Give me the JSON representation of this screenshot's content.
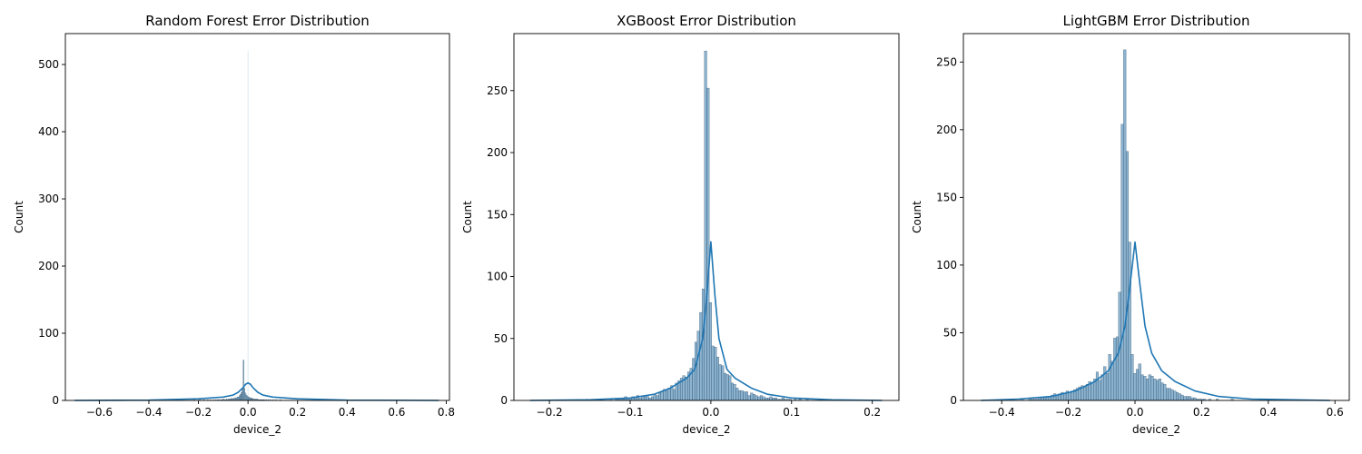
{
  "chart_data": [
    {
      "type": "bar",
      "title": "Random Forest Error Distribution",
      "xlabel": "device_2",
      "ylabel": "Count",
      "xlim": [
        -0.737,
        0.813
      ],
      "ylim": [
        0,
        546
      ],
      "xticks": [
        -0.6,
        -0.4,
        -0.2,
        0.0,
        0.2,
        0.4,
        0.6,
        0.8
      ],
      "xtick_labels": [
        "−0.6",
        "−0.4",
        "−0.2",
        "0.0",
        "0.2",
        "0.4",
        "0.6",
        "0.8"
      ],
      "yticks": [
        0,
        100,
        200,
        300,
        400,
        500
      ],
      "ytick_labels": [
        "0",
        "100",
        "200",
        "300",
        "400",
        "500"
      ],
      "grid": false,
      "bins": {
        "start": -0.7,
        "width": 0.004,
        "values": [
          0,
          0,
          0,
          0,
          0,
          0,
          0,
          0,
          0,
          0,
          0,
          0,
          0,
          0,
          0,
          0,
          0,
          0,
          0,
          0,
          0,
          0,
          0,
          0,
          0,
          0,
          0,
          0,
          0,
          0,
          0,
          0,
          0,
          0,
          0,
          0,
          0,
          0,
          0,
          0,
          0,
          0,
          0,
          0,
          0,
          0,
          0,
          0,
          0,
          0,
          0,
          0,
          0,
          0,
          0,
          0,
          0,
          0,
          0,
          0,
          0,
          0,
          0,
          0,
          0,
          0,
          0,
          0,
          0,
          0,
          0,
          0,
          0,
          0,
          0,
          0,
          0,
          0,
          0,
          0,
          0,
          0,
          0,
          0,
          0,
          0,
          0,
          0,
          0,
          0,
          0,
          0,
          0,
          0,
          0,
          0,
          0,
          0,
          0,
          0,
          0,
          0,
          0,
          0,
          0,
          0,
          0,
          0,
          0,
          0,
          0,
          0,
          0,
          0,
          0,
          0,
          0,
          0,
          0,
          0,
          1,
          0,
          0,
          0,
          0,
          0,
          1,
          0,
          0,
          0,
          1,
          0,
          0,
          0,
          1,
          0,
          0,
          1,
          0,
          0,
          1,
          0,
          1,
          0,
          1,
          1,
          0,
          1,
          1,
          1,
          2,
          1,
          1,
          2,
          1,
          2,
          2,
          2,
          3,
          2,
          3,
          3,
          4,
          4,
          5,
          5,
          7,
          9,
          12,
          19,
          60,
          18,
          11,
          8,
          6,
          5,
          4,
          4,
          3,
          3,
          2,
          2,
          2,
          2,
          2,
          1,
          1,
          1,
          1,
          1,
          1,
          1,
          0,
          1,
          0,
          1,
          0,
          1,
          0,
          0,
          1,
          0,
          0,
          1,
          0,
          0,
          0,
          1,
          0,
          0,
          0,
          0,
          0,
          0,
          0,
          0,
          0,
          0,
          0,
          0,
          0,
          0,
          0,
          0,
          0,
          0,
          0,
          0,
          0,
          0,
          0,
          0,
          0,
          0,
          0,
          0,
          0,
          0,
          0,
          0,
          0,
          0,
          0,
          0,
          0,
          0,
          0,
          0,
          0,
          0,
          0,
          0,
          0,
          0,
          0,
          0,
          0,
          0,
          0,
          0,
          0,
          0,
          0,
          0,
          0,
          0,
          0,
          0,
          0,
          0,
          0,
          0,
          0,
          0,
          0,
          0,
          0,
          0,
          0,
          0,
          0,
          0,
          0,
          0,
          0,
          0,
          0,
          0,
          0,
          0,
          0,
          0,
          0,
          0,
          0,
          0,
          0,
          0,
          0,
          0,
          0,
          0,
          0,
          0,
          0,
          0,
          0,
          0,
          0,
          0,
          0,
          0,
          0,
          0,
          0,
          0,
          0,
          0,
          0,
          0,
          0,
          0,
          0,
          0,
          0,
          0,
          0,
          0,
          0,
          0,
          0,
          0,
          0,
          0,
          0,
          0,
          0,
          0,
          0,
          0,
          0,
          0,
          0,
          0,
          0,
          0,
          0,
          0,
          0,
          0,
          0,
          0,
          0,
          0,
          0,
          0,
          0,
          0,
          0,
          0,
          0,
          0,
          0,
          0,
          0,
          0,
          0,
          0,
          0,
          0,
          0,
          0,
          0,
          0,
          0,
          0,
          0,
          0,
          0,
          0,
          0,
          0,
          0,
          0,
          0,
          0,
          0,
          0,
          0,
          0,
          0,
          0,
          0,
          0,
          0,
          0,
          0,
          0,
          0,
          0
        ],
        "spike": {
          "x": 0.0,
          "count": 520
        }
      },
      "kde": {
        "x": [
          -0.7,
          -0.4,
          -0.2,
          -0.1,
          -0.06,
          -0.04,
          -0.02,
          -0.01,
          0.0,
          0.01,
          0.02,
          0.04,
          0.06,
          0.1,
          0.2,
          0.4,
          0.77
        ],
        "y": [
          0,
          0.5,
          2.5,
          5,
          8,
          12,
          19,
          24,
          26,
          24,
          19,
          12,
          8,
          5,
          2.5,
          0.5,
          0
        ]
      }
    },
    {
      "type": "bar",
      "title": "XGBoost Error Distribution",
      "xlabel": "device_2",
      "ylabel": "Count",
      "xlim": [
        -0.244,
        0.233
      ],
      "ylim": [
        0,
        296
      ],
      "xticks": [
        -0.2,
        -0.1,
        0.0,
        0.1,
        0.2
      ],
      "xtick_labels": [
        "−0.2",
        "−0.1",
        "0.0",
        "0.1",
        "0.2"
      ],
      "yticks": [
        0,
        50,
        100,
        150,
        200,
        250
      ],
      "ytick_labels": [
        "0",
        "50",
        "100",
        "150",
        "200",
        "250"
      ],
      "grid": false,
      "bins": {
        "start": -0.224,
        "width": 0.003,
        "values": [
          0,
          0,
          0,
          0,
          0,
          0,
          0,
          0,
          0,
          0,
          0,
          0,
          0,
          0,
          0,
          0,
          0,
          0,
          0,
          0,
          0,
          0,
          0,
          1,
          0,
          0,
          0,
          0,
          0,
          1,
          0,
          0,
          0,
          1,
          0,
          1,
          1,
          2,
          1,
          3,
          2,
          2,
          3,
          2,
          4,
          2,
          3,
          3,
          4,
          2,
          3,
          5,
          4,
          6,
          7,
          9,
          8,
          10,
          12,
          9,
          14,
          16,
          18,
          20,
          19,
          23,
          26,
          34,
          47,
          56,
          71,
          90,
          282,
          252,
          79,
          44,
          43,
          35,
          29,
          28,
          22,
          21,
          20,
          14,
          13,
          10,
          8,
          8,
          7,
          7,
          4,
          6,
          5,
          4,
          3,
          4,
          3,
          2,
          2,
          3,
          2,
          2,
          1,
          1,
          2,
          1,
          1,
          1,
          0,
          1,
          0,
          1,
          0,
          0,
          1,
          0,
          0,
          0,
          0,
          0,
          1,
          0,
          0,
          0,
          0,
          0,
          0,
          0,
          0,
          0,
          0,
          0,
          0,
          0,
          0,
          0,
          0,
          0,
          0,
          0,
          0,
          0,
          0,
          0,
          0
        ]
      },
      "kde": {
        "x": [
          -0.224,
          -0.15,
          -0.1,
          -0.07,
          -0.05,
          -0.03,
          -0.02,
          -0.01,
          -0.005,
          0.0,
          0.005,
          0.01,
          0.02,
          0.03,
          0.05,
          0.07,
          0.1,
          0.15,
          0.212
        ],
        "y": [
          0,
          0.5,
          2,
          5,
          10,
          18,
          25,
          50,
          85,
          128,
          85,
          50,
          25,
          18,
          10,
          5,
          2,
          0.5,
          0
        ]
      }
    },
    {
      "type": "bar",
      "title": "LightGBM Error Distribution",
      "xlabel": "device_2",
      "ylabel": "Count",
      "xlim": [
        -0.515,
        0.643
      ],
      "ylim": [
        0,
        271
      ],
      "xticks": [
        -0.4,
        -0.2,
        0.0,
        0.2,
        0.4,
        0.6
      ],
      "xtick_labels": [
        "−0.4",
        "−0.2",
        "0.0",
        "0.2",
        "0.4",
        "0.6"
      ],
      "yticks": [
        0,
        50,
        100,
        150,
        200,
        250
      ],
      "ytick_labels": [
        "0",
        "50",
        "100",
        "150",
        "200",
        "250"
      ],
      "grid": false,
      "bins": {
        "start": -0.462,
        "width": 0.0075,
        "values": [
          0,
          0,
          0,
          0,
          0,
          0,
          0,
          0,
          0,
          0,
          0,
          0,
          0,
          0,
          0,
          0,
          1,
          0,
          0,
          1,
          1,
          1,
          1,
          2,
          2,
          2,
          3,
          3,
          4,
          5,
          4,
          5,
          6,
          5,
          7,
          6,
          7,
          8,
          9,
          10,
          11,
          10,
          12,
          14,
          13,
          16,
          21,
          15,
          19,
          25,
          20,
          34,
          29,
          46,
          47,
          80,
          204,
          259,
          184,
          117,
          34,
          20,
          23,
          27,
          19,
          18,
          16,
          19,
          18,
          16,
          15,
          16,
          13,
          12,
          9,
          9,
          8,
          7,
          6,
          5,
          4,
          3,
          3,
          3,
          2,
          2,
          1,
          1,
          1,
          1,
          0,
          1,
          0,
          0,
          1,
          0,
          0,
          0,
          0,
          0,
          1,
          0,
          0,
          0,
          0,
          0,
          0,
          0,
          0,
          0,
          0,
          0,
          0,
          0,
          0,
          0,
          0,
          0,
          0,
          0,
          0,
          0,
          0,
          0,
          0,
          0,
          0,
          0,
          0,
          0,
          0,
          0,
          0,
          0,
          0,
          0,
          0,
          0,
          0
        ]
      },
      "kde": {
        "x": [
          -0.462,
          -0.35,
          -0.25,
          -0.18,
          -0.12,
          -0.08,
          -0.05,
          -0.03,
          -0.015,
          0.0,
          0.015,
          0.03,
          0.05,
          0.08,
          0.12,
          0.18,
          0.25,
          0.35,
          0.585
        ],
        "y": [
          0,
          1,
          3,
          7,
          14,
          22,
          35,
          55,
          85,
          117,
          85,
          55,
          35,
          22,
          14,
          7,
          3,
          1,
          0
        ]
      }
    }
  ],
  "colors": {
    "bar_fill": "#2e76ac",
    "bar_edge": "#2f4b63",
    "kde_line": "#1f77b4",
    "axis": "#000000",
    "background": "#ffffff"
  }
}
